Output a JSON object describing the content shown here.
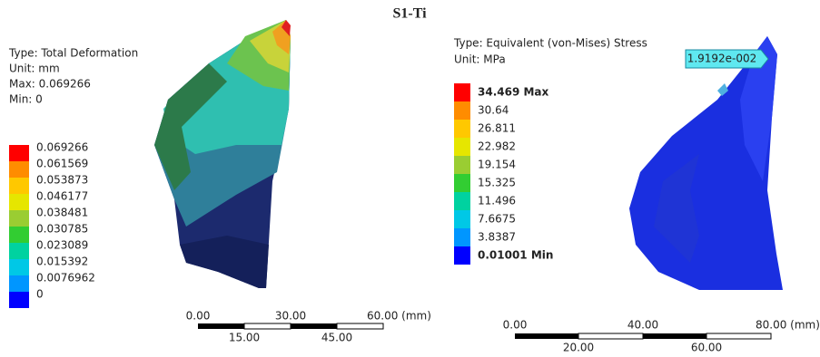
{
  "title": "S1-Ti",
  "left": {
    "type": "Type: Total Deformation",
    "unit": "Unit: mm",
    "max": "Max: 0.069266",
    "min": "Min: 0",
    "legend": [
      "0.069266",
      "0.061569",
      "0.053873",
      "0.046177",
      "0.038481",
      "0.030785",
      "0.023089",
      "0.015392",
      "0.0076962",
      "0"
    ],
    "scale_top": [
      "0.00",
      "30.00",
      "60.00 (mm)"
    ],
    "scale_bottom": [
      "15.00",
      "45.00"
    ]
  },
  "right": {
    "type": "Type: Equivalent (von-Mises) Stress",
    "unit": "Unit: MPa",
    "legend": [
      "34.469 Max",
      "30.64",
      "26.811",
      "22.982",
      "19.154",
      "15.325",
      "11.496",
      "7.6675",
      "3.8387",
      "0.01001 Min"
    ],
    "probe": "1.9192e-002",
    "scale_top": [
      "0.00",
      "40.00",
      "80.00 (mm)"
    ],
    "scale_bottom": [
      "20.00",
      "60.00"
    ]
  }
}
